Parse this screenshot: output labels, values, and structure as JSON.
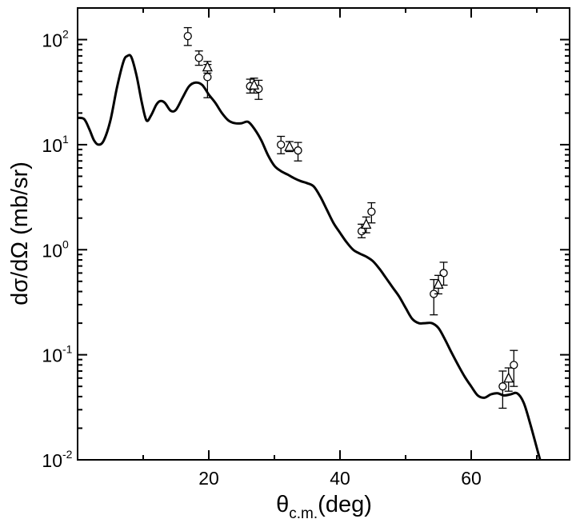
{
  "chart_data": {
    "type": "scatter",
    "xlabel": {
      "main": "θ",
      "sub": "c.m.",
      "rest": "(deg)"
    },
    "ylabel": "dσ/dΩ (mb/sr)",
    "xlim": [
      0,
      75
    ],
    "ylim": [
      0.01,
      200
    ],
    "yscale": "log",
    "x_ticks": [
      20,
      40,
      60
    ],
    "y_ticks": [
      {
        "value": 100,
        "base": "10",
        "exp": "2"
      },
      {
        "value": 10,
        "base": "10",
        "exp": "1"
      },
      {
        "value": 1,
        "base": "10",
        "exp": "0"
      },
      {
        "value": 0.1,
        "base": "10",
        "exp": "-1"
      },
      {
        "value": 0.01,
        "base": "10",
        "exp": "-2"
      }
    ],
    "grid": false,
    "series": [
      {
        "kind": "line",
        "color": "#000000",
        "points": [
          [
            0,
            18
          ],
          [
            1.0,
            17.5
          ],
          [
            1.8,
            14
          ],
          [
            2.5,
            11
          ],
          [
            3.2,
            10
          ],
          [
            4.0,
            11
          ],
          [
            5.0,
            17
          ],
          [
            6.0,
            35
          ],
          [
            7.0,
            62
          ],
          [
            7.6,
            70
          ],
          [
            8.2,
            68
          ],
          [
            9.0,
            45
          ],
          [
            9.8,
            25
          ],
          [
            10.5,
            17
          ],
          [
            11.2,
            19
          ],
          [
            12.0,
            24
          ],
          [
            12.6,
            26
          ],
          [
            13.3,
            25
          ],
          [
            14.2,
            21
          ],
          [
            15.0,
            21.5
          ],
          [
            16.0,
            28
          ],
          [
            17.0,
            36
          ],
          [
            18.0,
            39
          ],
          [
            19.0,
            37
          ],
          [
            20.0,
            30
          ],
          [
            21.0,
            25
          ],
          [
            22.0,
            20
          ],
          [
            23.0,
            17
          ],
          [
            24.0,
            16
          ],
          [
            25.0,
            16
          ],
          [
            26.0,
            16.5
          ],
          [
            27.0,
            14
          ],
          [
            28.0,
            11
          ],
          [
            29.0,
            8
          ],
          [
            30.0,
            6.3
          ],
          [
            31.0,
            5.6
          ],
          [
            32.0,
            5.2
          ],
          [
            33.0,
            4.8
          ],
          [
            34.0,
            4.5
          ],
          [
            35.0,
            4.3
          ],
          [
            36.0,
            4.0
          ],
          [
            37.0,
            3.2
          ],
          [
            38.0,
            2.4
          ],
          [
            39.0,
            1.8
          ],
          [
            40.0,
            1.45
          ],
          [
            41.0,
            1.18
          ],
          [
            42.0,
            1.0
          ],
          [
            43.0,
            0.92
          ],
          [
            44.0,
            0.86
          ],
          [
            45.0,
            0.78
          ],
          [
            46.0,
            0.66
          ],
          [
            47.0,
            0.54
          ],
          [
            48.0,
            0.44
          ],
          [
            49.0,
            0.36
          ],
          [
            50.0,
            0.28
          ],
          [
            51.0,
            0.22
          ],
          [
            52.0,
            0.2
          ],
          [
            53.0,
            0.2
          ],
          [
            54.0,
            0.2
          ],
          [
            55.0,
            0.18
          ],
          [
            56.0,
            0.14
          ],
          [
            57.0,
            0.105
          ],
          [
            58.0,
            0.08
          ],
          [
            59.0,
            0.062
          ],
          [
            60.0,
            0.05
          ],
          [
            61.0,
            0.041
          ],
          [
            62.0,
            0.039
          ],
          [
            63.0,
            0.042
          ],
          [
            64.0,
            0.043
          ],
          [
            65.0,
            0.041
          ],
          [
            66.0,
            0.042
          ],
          [
            67.0,
            0.043
          ],
          [
            68.0,
            0.035
          ],
          [
            69.0,
            0.022
          ],
          [
            70.0,
            0.013
          ],
          [
            70.7,
            0.009
          ]
        ]
      },
      {
        "kind": "points",
        "marker": "circle",
        "points": [
          {
            "x": 16.8,
            "y": 108,
            "lo": 88,
            "hi": 130
          },
          {
            "x": 18.5,
            "y": 67,
            "lo": 57,
            "hi": 78
          },
          {
            "x": 19.8,
            "y": 44,
            "lo": 28,
            "hi": 58
          },
          {
            "x": 26.3,
            "y": 36,
            "lo": 31,
            "hi": 42
          },
          {
            "x": 27.6,
            "y": 34,
            "lo": 27,
            "hi": 41
          },
          {
            "x": 31.0,
            "y": 10,
            "lo": 8.2,
            "hi": 12
          },
          {
            "x": 33.6,
            "y": 8.8,
            "lo": 7.0,
            "hi": 10.5
          },
          {
            "x": 43.3,
            "y": 1.5,
            "lo": 1.3,
            "hi": 1.75
          },
          {
            "x": 44.8,
            "y": 2.3,
            "lo": 1.8,
            "hi": 2.8
          },
          {
            "x": 54.3,
            "y": 0.38,
            "lo": 0.24,
            "hi": 0.52
          },
          {
            "x": 55.8,
            "y": 0.6,
            "lo": 0.46,
            "hi": 0.76
          },
          {
            "x": 64.8,
            "y": 0.05,
            "lo": 0.031,
            "hi": 0.07
          },
          {
            "x": 66.5,
            "y": 0.08,
            "lo": 0.05,
            "hi": 0.11
          }
        ]
      },
      {
        "kind": "points",
        "marker": "triangle",
        "points": [
          {
            "x": 19.8,
            "y": 55,
            "lo": 48,
            "hi": 62
          },
          {
            "x": 26.9,
            "y": 37,
            "lo": 31,
            "hi": 43
          },
          {
            "x": 32.3,
            "y": 9.6,
            "lo": 8.6,
            "hi": 10.7
          },
          {
            "x": 44.0,
            "y": 1.75,
            "lo": 1.45,
            "hi": 2.05
          },
          {
            "x": 55.0,
            "y": 0.47,
            "lo": 0.38,
            "hi": 0.57
          },
          {
            "x": 65.7,
            "y": 0.06,
            "lo": 0.045,
            "hi": 0.075
          }
        ]
      }
    ]
  }
}
